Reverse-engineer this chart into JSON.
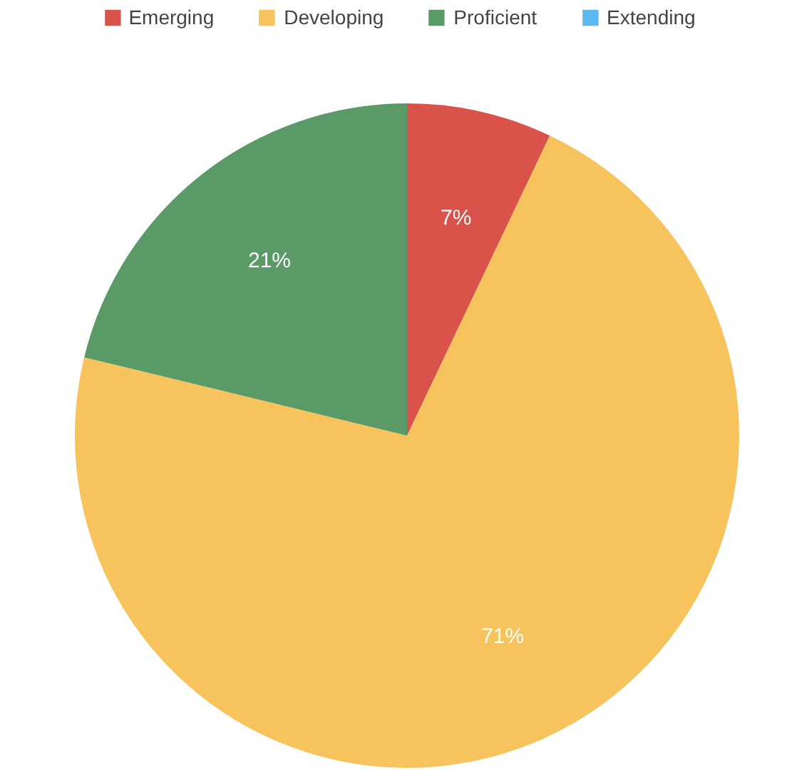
{
  "chart_data": {
    "type": "pie",
    "categories": [
      "Emerging",
      "Developing",
      "Proficient",
      "Extending"
    ],
    "values": [
      7,
      71,
      21,
      0
    ],
    "colors": [
      "#d9534a",
      "#f7c35c",
      "#5a9a66",
      "#5cb8f0"
    ],
    "value_labels": [
      "7%",
      "71%",
      "21%",
      null
    ],
    "legend": "top"
  }
}
